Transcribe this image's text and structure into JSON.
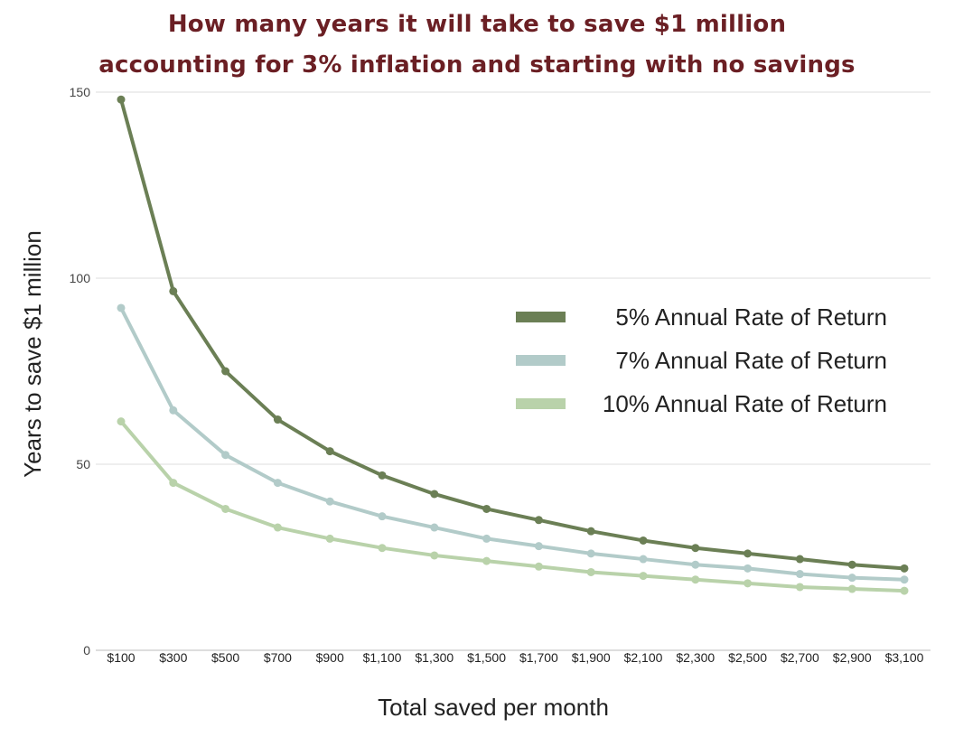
{
  "chart_data": {
    "type": "line",
    "title_line1": "How many years it will take to save $1 million",
    "title_line2": "accounting for 3% inflation and starting with no savings",
    "xlabel": "Total saved per month",
    "ylabel": "Years to save $1 million",
    "ylim": [
      0,
      150
    ],
    "yticks": [
      "0",
      "50",
      "100",
      "150"
    ],
    "grid": true,
    "legend_position": "right",
    "categories": [
      "$100",
      "$300",
      "$500",
      "$700",
      "$900",
      "$1,100",
      "$1,300",
      "$1,500",
      "$1,700",
      "$1,900",
      "$2,100",
      "$2,300",
      "$2,500",
      "$2,700",
      "$2,900",
      "$3,100"
    ],
    "series": [
      {
        "name": "5% Annual Rate of Return",
        "color": "#6b7f55",
        "values": [
          148,
          96.5,
          75,
          62,
          53.5,
          47,
          42,
          38,
          35,
          32,
          29.5,
          27.5,
          26,
          24.5,
          23,
          22
        ]
      },
      {
        "name": "7% Annual Rate of Return",
        "color": "#b2cbc9",
        "values": [
          92,
          64.5,
          52.5,
          45,
          40,
          36,
          33,
          30,
          28,
          26,
          24.5,
          23,
          22,
          20.5,
          19.5,
          19
        ]
      },
      {
        "name": "10% Annual Rate of Return",
        "color": "#b9d2aa",
        "values": [
          61.5,
          45,
          38,
          33,
          30,
          27.5,
          25.5,
          24,
          22.5,
          21,
          20,
          19,
          18,
          17,
          16.5,
          16
        ]
      }
    ]
  }
}
